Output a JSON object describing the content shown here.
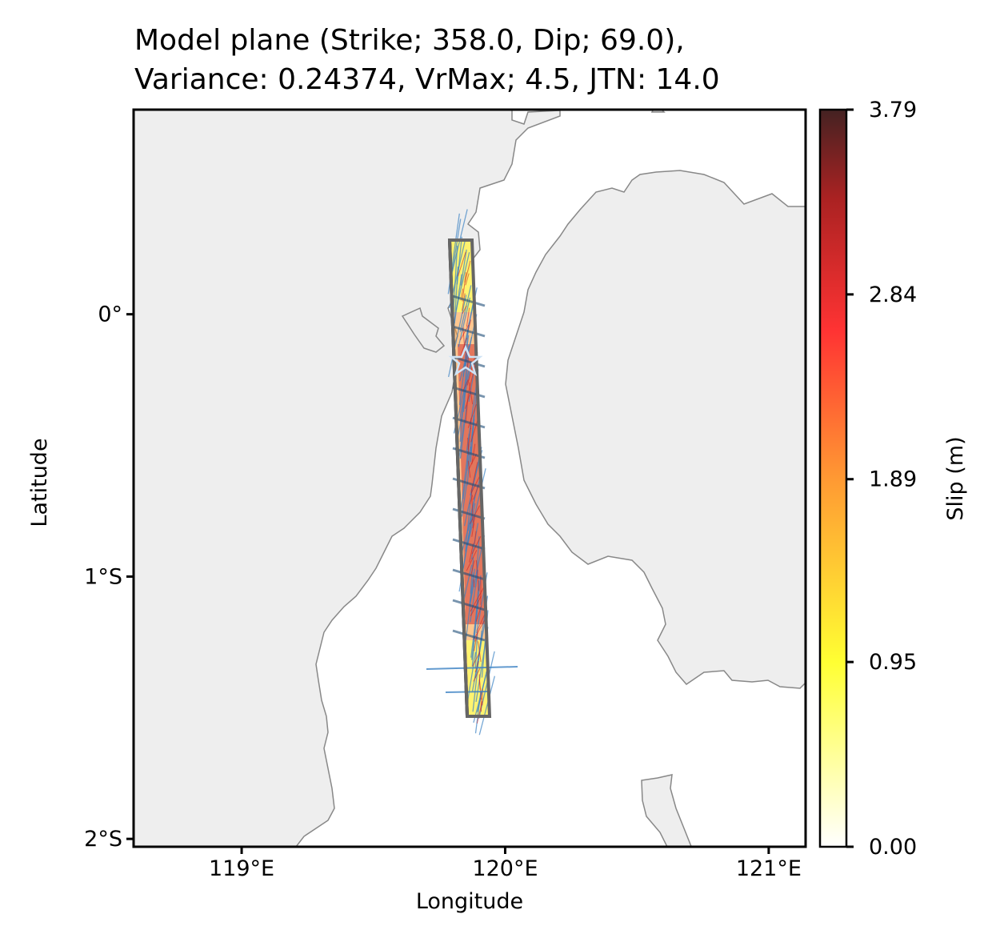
{
  "title": {
    "line1": "Model plane (Strike; 358.0, Dip; 69.0),",
    "line2": "Variance: 0.24374, VrMax; 4.5, JTN: 14.0"
  },
  "map": {
    "xlabel": "Longitude",
    "ylabel": "Latitude",
    "lon_range": [
      118.59,
      121.14
    ],
    "lat_range": [
      -2.03,
      0.78
    ],
    "x_ticks": [
      {
        "value": 119.0,
        "label": "119°E"
      },
      {
        "value": 120.0,
        "label": "120°E"
      },
      {
        "value": 121.0,
        "label": "121°E"
      }
    ],
    "y_ticks": [
      {
        "value": 0.0,
        "label": "0°"
      },
      {
        "value": -1.0,
        "label": "1°S"
      },
      {
        "value": -2.0,
        "label": "2°S"
      }
    ],
    "land_color": "#eeeeee",
    "coast_color": "#888888",
    "vector_color": "#3b82c4",
    "model_plane": {
      "strike": 358.0,
      "dip": 69.0,
      "top_edge": [
        [
          119.79,
          0.28
        ],
        [
          119.85,
          -1.54
        ]
      ],
      "bottom_edge": [
        [
          119.87,
          0.28
        ],
        [
          119.93,
          -1.54
        ]
      ]
    },
    "epicenter": {
      "lon": 119.84,
      "lat": -0.18,
      "icon": "star-icon"
    }
  },
  "colorbar": {
    "label": "Slip (m)",
    "range": [
      0.0,
      3.79
    ],
    "ticks": [
      {
        "value": 0.0,
        "label": "0.00"
      },
      {
        "value": 0.95,
        "label": "0.95"
      },
      {
        "value": 1.89,
        "label": "1.89"
      },
      {
        "value": 2.84,
        "label": "2.84"
      },
      {
        "value": 3.79,
        "label": "3.79"
      }
    ],
    "colors": [
      "#ffffff",
      "#ffff33",
      "#ff9933",
      "#ff3333",
      "#aa2222",
      "#442222"
    ]
  }
}
